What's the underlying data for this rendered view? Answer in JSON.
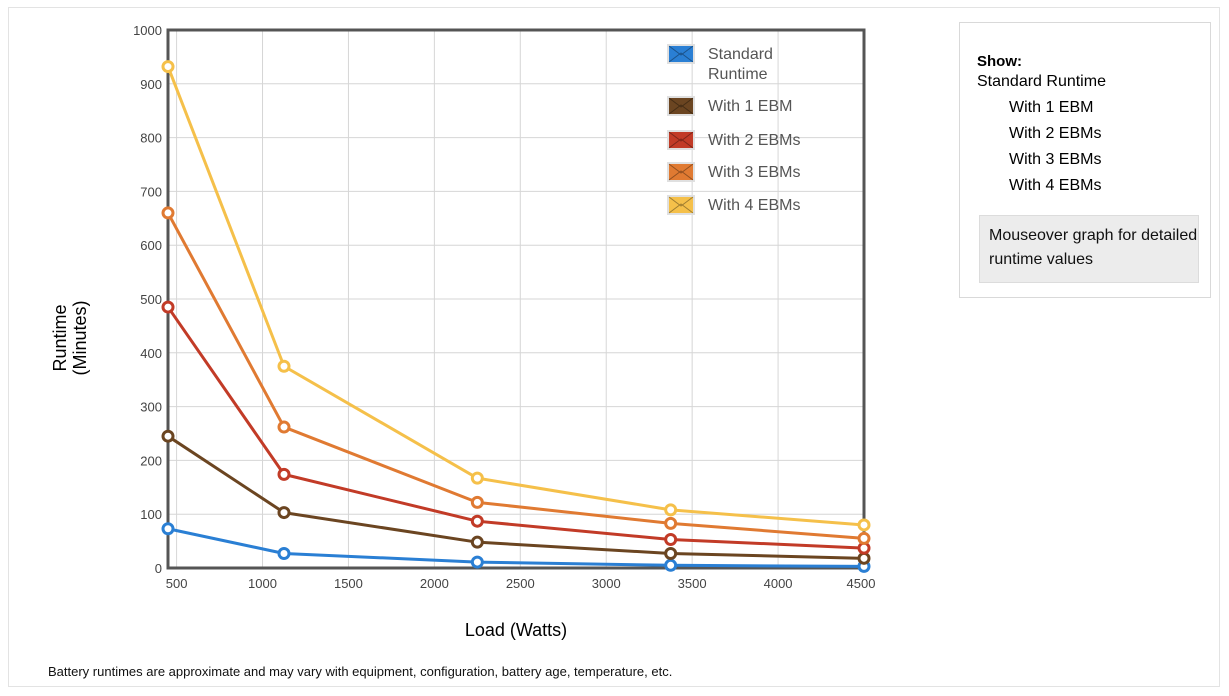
{
  "chart_data": {
    "type": "line",
    "xlabel": "Load (Watts)",
    "ylabel_lines": [
      "Runtime",
      "(Minutes)"
    ],
    "xlim": [
      450,
      4500
    ],
    "ylim": [
      0,
      1000
    ],
    "x_ticks": [
      500,
      1000,
      1500,
      2000,
      2500,
      3000,
      3500,
      4000,
      4500
    ],
    "y_ticks": [
      0,
      100,
      200,
      300,
      400,
      500,
      600,
      700,
      800,
      900,
      1000
    ],
    "grid": true,
    "legend_position": "top-right",
    "x": [
      450,
      1125,
      2250,
      3375,
      4500
    ],
    "series": [
      {
        "name": "Standard Runtime",
        "legend_lines": [
          "Standard",
          "Runtime"
        ],
        "color": "#2a7fd4",
        "values": [
          73,
          27,
          11,
          5,
          3
        ]
      },
      {
        "name": "With 1 EBM",
        "legend_lines": [
          "With 1 EBM"
        ],
        "color": "#6b4521",
        "values": [
          245,
          103,
          48,
          27,
          18
        ]
      },
      {
        "name": "With 2 EBMs",
        "legend_lines": [
          "With 2 EBMs"
        ],
        "color": "#c23b27",
        "values": [
          485,
          174,
          87,
          53,
          37
        ]
      },
      {
        "name": "With 3 EBMs",
        "legend_lines": [
          "With 3 EBMs"
        ],
        "color": "#e07a32",
        "values": [
          660,
          262,
          122,
          83,
          55
        ]
      },
      {
        "name": "With 4 EBMs",
        "legend_lines": [
          "With 4 EBMs"
        ],
        "color": "#f5c04a",
        "values": [
          932,
          375,
          167,
          108,
          80
        ]
      }
    ]
  },
  "panel": {
    "show_label": "Show:",
    "toggles": [
      "Standard Runtime",
      "With 1 EBM",
      "With 2 EBMs",
      "With 3 EBMs",
      "With 4 EBMs"
    ],
    "hint": "Mouseover graph for detailed runtime values"
  },
  "footnote": "Battery runtimes are approximate and may vary with equipment, configuration, battery age, temperature, etc."
}
